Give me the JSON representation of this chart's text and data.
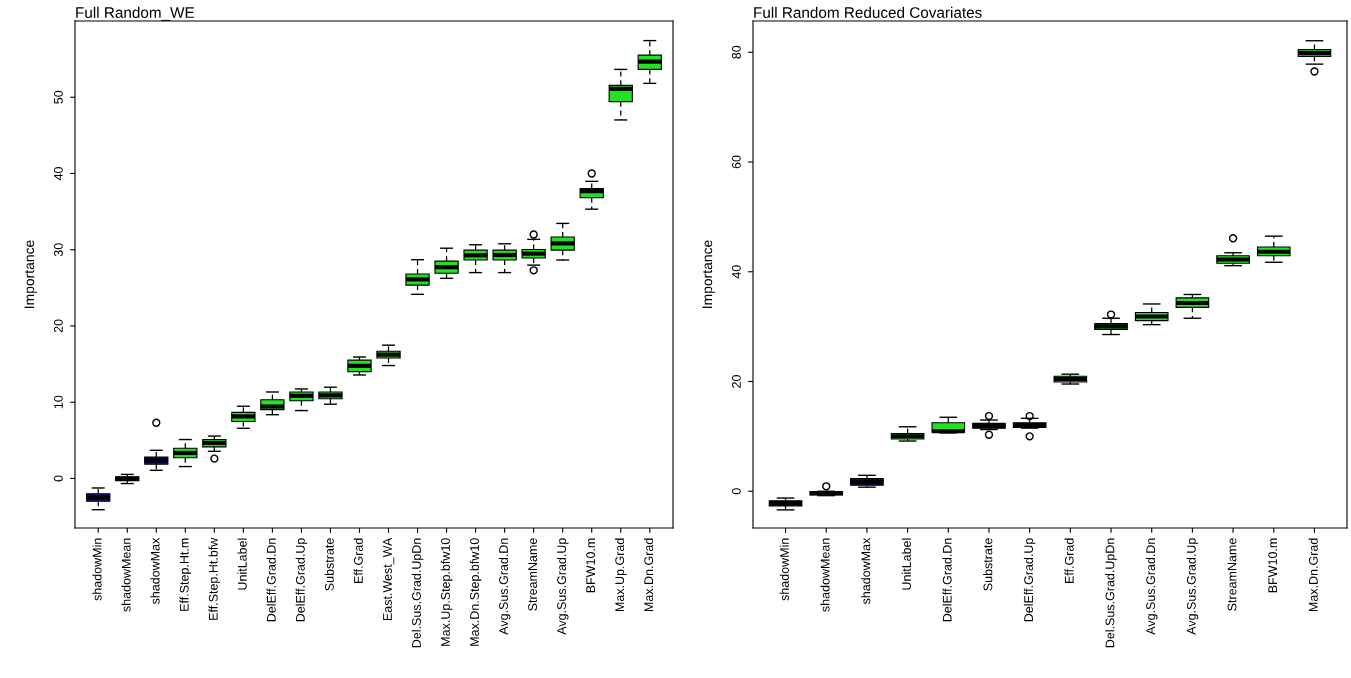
{
  "chart_data": [
    {
      "type": "box",
      "title": "Full Random_WE",
      "ylabel": "Importance",
      "ylim": [
        -6.5,
        60
      ],
      "yticks": [
        0,
        10,
        20,
        30,
        40,
        50
      ],
      "grid": false,
      "categories": [
        "shadowMin",
        "shadowMean",
        "shadowMax",
        "Eff.Step.Ht.m",
        "Eff.Step.Ht.bfw",
        "UnitLabel",
        "DelEff.Grad.Dn",
        "DelEff.Grad.Up",
        "Substrate",
        "Eff.Grad",
        "East.West_WA",
        "Del.Sus.Grad.UpDn",
        "Max.Up.Step.bfw10",
        "Max.Dn.Step.bfw10",
        "Avg.Sus.Grad.Dn",
        "StreamName",
        "Avg.Sus.Grad.Up",
        "BFW10.m",
        "Max.Up.Grad",
        "Max.Dn.Grad"
      ],
      "colors": [
        "#10108a",
        "#10108a",
        "#10108a",
        "#22e022",
        "#22e022",
        "#22e022",
        "#22e022",
        "#22e022",
        "#22e022",
        "#22e022",
        "#22e022",
        "#22e022",
        "#22e022",
        "#22e022",
        "#22e022",
        "#22e022",
        "#22e022",
        "#22e022",
        "#22e022",
        "#22e022"
      ],
      "boxes": [
        {
          "low": -4.1,
          "q1": -3.0,
          "median": -2.5,
          "q3": -2.0,
          "high": -1.25
        },
        {
          "low": -0.67,
          "q1": -0.31,
          "median": -0.05,
          "q3": 0.22,
          "high": 0.53
        },
        {
          "low": 1.07,
          "q1": 1.87,
          "median": 2.36,
          "q3": 2.8,
          "high": 3.69,
          "outliers": [
            7.3
          ]
        },
        {
          "low": 1.56,
          "q1": 2.71,
          "median": 3.34,
          "q3": 3.96,
          "high": 5.1
        },
        {
          "low": 3.56,
          "q1": 4.14,
          "median": 4.67,
          "q3": 5.1,
          "high": 5.56,
          "outliers": [
            2.6
          ]
        },
        {
          "low": 6.58,
          "q1": 7.47,
          "median": 8.14,
          "q3": 8.67,
          "high": 9.47
        },
        {
          "low": 8.36,
          "q1": 9.03,
          "median": 9.43,
          "q3": 10.32,
          "high": 11.34
        },
        {
          "low": 8.9,
          "q1": 10.19,
          "median": 10.85,
          "q3": 11.34,
          "high": 11.74
        },
        {
          "low": 9.74,
          "q1": 10.45,
          "median": 10.9,
          "q3": 11.34,
          "high": 11.97
        },
        {
          "low": 13.57,
          "q1": 14.01,
          "median": 14.77,
          "q3": 15.52,
          "high": 15.93
        },
        {
          "low": 14.81,
          "q1": 15.79,
          "median": 16.24,
          "q3": 16.68,
          "high": 17.48
        },
        {
          "low": 24.15,
          "q1": 25.36,
          "median": 26.11,
          "q3": 26.82,
          "high": 28.69
        },
        {
          "low": 26.25,
          "q1": 26.91,
          "median": 27.71,
          "q3": 28.51,
          "high": 30.2
        },
        {
          "low": 27.0,
          "q1": 28.65,
          "median": 29.27,
          "q3": 29.94,
          "high": 30.65
        },
        {
          "low": 27.0,
          "q1": 28.65,
          "median": 29.31,
          "q3": 29.94,
          "high": 30.78
        },
        {
          "low": 27.98,
          "q1": 28.91,
          "median": 29.49,
          "q3": 30.03,
          "high": 31.36,
          "outliers": [
            32.0,
            27.3
          ]
        },
        {
          "low": 28.65,
          "q1": 29.94,
          "median": 30.83,
          "q3": 31.67,
          "high": 33.45
        },
        {
          "low": 35.32,
          "q1": 36.83,
          "median": 37.68,
          "q3": 38.03,
          "high": 38.97,
          "outliers": [
            40.0
          ]
        },
        {
          "low": 47.02,
          "q1": 49.42,
          "median": 51.11,
          "q3": 51.56,
          "high": 53.65
        },
        {
          "low": 51.82,
          "q1": 53.65,
          "median": 54.67,
          "q3": 55.52,
          "high": 57.43
        }
      ]
    },
    {
      "type": "box",
      "title": "Full Random Reduced Covariates",
      "ylabel": "Importance",
      "ylim": [
        -6.7,
        85.7
      ],
      "yticks": [
        0,
        20,
        40,
        60,
        80
      ],
      "grid": false,
      "categories": [
        "shadowMin",
        "shadowMean",
        "shadowMax",
        "UnitLabel",
        "DelEff.Grad.Dn",
        "Substrate",
        "DelEff.Grad.Up",
        "Eff.Grad",
        "Del.Sus.Grad.UpDn",
        "Avg.Sus.Grad.Dn",
        "Avg.Sus.Grad.Up",
        "StreamName",
        "BFW10.m",
        "Max.Dn.Grad"
      ],
      "colors": [
        "#10108a",
        "#10108a",
        "#10108a",
        "#22e022",
        "#22e022",
        "#22e022",
        "#22e022",
        "#22e022",
        "#22e022",
        "#22e022",
        "#22e022",
        "#22e022",
        "#22e022",
        "#22e022"
      ],
      "boxes": [
        {
          "low": -3.4,
          "q1": -2.66,
          "median": -2.16,
          "q3": -1.73,
          "high": -1.24
        },
        {
          "low": -0.8,
          "q1": -0.68,
          "median": -0.37,
          "q3": -0.06,
          "high": 0.0,
          "outliers": [
            0.9
          ]
        },
        {
          "low": 0.74,
          "q1": 1.11,
          "median": 1.67,
          "q3": 2.29,
          "high": 2.9
        },
        {
          "low": 9.15,
          "q1": 9.52,
          "median": 10.02,
          "q3": 10.51,
          "high": 11.75
        },
        {
          "low": 10.63,
          "q1": 10.76,
          "median": 10.94,
          "q3": 12.49,
          "high": 13.48
        },
        {
          "low": 11.25,
          "q1": 11.5,
          "median": 11.87,
          "q3": 12.36,
          "high": 12.98,
          "outliers": [
            13.7,
            10.3
          ]
        },
        {
          "low": 11.5,
          "q1": 11.62,
          "median": 12.06,
          "q3": 12.49,
          "high": 13.29,
          "outliers": [
            13.7,
            10.0
          ]
        },
        {
          "low": 19.54,
          "q1": 19.91,
          "median": 20.46,
          "q3": 20.96,
          "high": 21.33
        },
        {
          "low": 28.56,
          "q1": 29.49,
          "median": 30.05,
          "q3": 30.54,
          "high": 31.53,
          "outliers": [
            32.2
          ]
        },
        {
          "low": 30.36,
          "q1": 31.1,
          "median": 31.84,
          "q3": 32.58,
          "high": 34.13
        },
        {
          "low": 31.53,
          "q1": 33.51,
          "median": 34.31,
          "q3": 35.24,
          "high": 35.86
        },
        {
          "low": 41.11,
          "q1": 41.55,
          "median": 42.23,
          "q3": 42.91,
          "high": 43.46,
          "outliers": [
            46.1
          ]
        },
        {
          "low": 41.73,
          "q1": 42.91,
          "median": 43.65,
          "q3": 44.51,
          "high": 46.49
        },
        {
          "low": 77.84,
          "q1": 79.26,
          "median": 79.88,
          "q3": 80.5,
          "high": 82.1,
          "outliers": [
            76.5
          ]
        }
      ]
    }
  ]
}
